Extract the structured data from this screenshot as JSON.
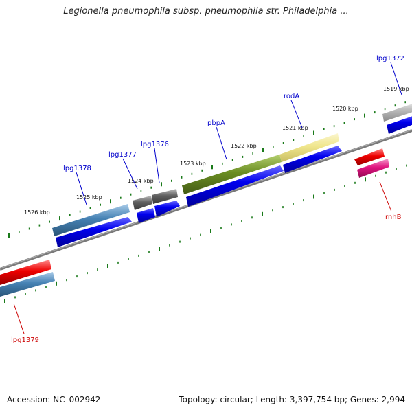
{
  "title": "Legionella pneumophila subsp. pneumophila str. Philadelphia ...",
  "footer": {
    "accession": "Accession: NC_002942",
    "summary": "Topology: circular; Length: 3,397,754 bp; Genes: 2,994"
  },
  "scale_labels": [
    "1519 kbp",
    "1520 kbp",
    "1521 kbp",
    "1522 kbp",
    "1523 kbp",
    "1524 kbp",
    "1525 kbp",
    "1526 kbp"
  ],
  "gene_labels": [
    {
      "text": "lpg1372",
      "color": "#0000cc"
    },
    {
      "text": "rodA",
      "color": "#0000cc"
    },
    {
      "text": "pbpA",
      "color": "#0000cc"
    },
    {
      "text": "lpg1376",
      "color": "#0000cc"
    },
    {
      "text": "lpg1377",
      "color": "#0000cc"
    },
    {
      "text": "lpg1378",
      "color": "#0000cc"
    },
    {
      "text": "rnhB",
      "color": "#cc0000"
    },
    {
      "text": "lpg1379",
      "color": "#cc0000"
    }
  ],
  "colors": {
    "backbone": "#808080",
    "ticks": "#1a7a1a",
    "cds": "#0000ee",
    "gene_steelblue": "#4682b4",
    "gene_gray": "#606060",
    "gene_olive": "#6b8e23",
    "gene_khaki": "#f0e68c",
    "gene_red": "#ee0000",
    "gene_pink": "#e0147f",
    "gene_lightgray": "#b8b8b8"
  }
}
